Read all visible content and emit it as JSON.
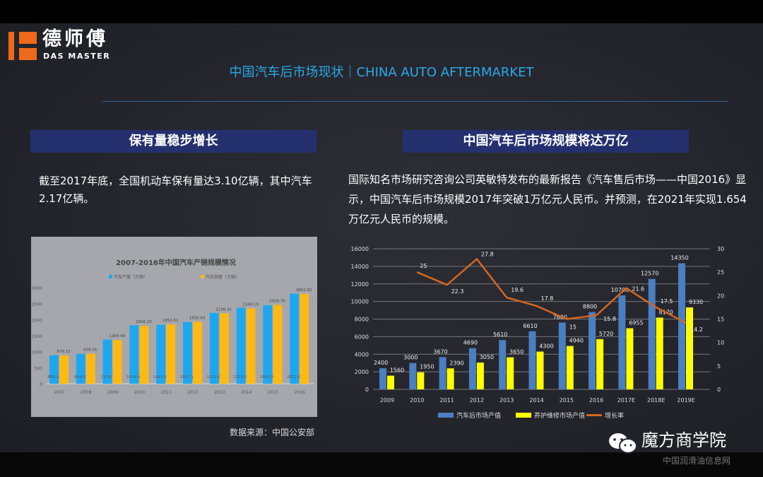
{
  "logo": {
    "cn": "德师傅",
    "en": "DAS MASTER"
  },
  "title": "中国汽车后市场现状｜CHINA AUTO AFTERMARKET",
  "left": {
    "heading": "保有量稳步增长",
    "text": "截至2017年底，全国机动车保有量达3.10亿辆，其中汽车2.17亿辆。",
    "source": "数据来源：中国公安部"
  },
  "right": {
    "heading": "中国汽车后市场规模将达万亿",
    "text": "国际知名市场研究咨询公司英敏特发布的最新报告《汽车售后市场——中国2016》显示，中国汽车后市场规模2017年突破1万亿元人民币。并预测，在2021年实现1.654万亿元人民币的规模。"
  },
  "watermark": {
    "name": "魔方商学院",
    "sub": "中国润滑油信息网"
  },
  "chart_data": [
    {
      "type": "bar",
      "title": "2007-2016年中国汽车产销规模情况",
      "categories": [
        "2007",
        "2008",
        "2009",
        "2010",
        "2011",
        "2012",
        "2013",
        "2014",
        "2015",
        "2016"
      ],
      "series": [
        {
          "name": "汽车产量（万辆）",
          "color": "#1ea7f0",
          "values": [
            888.24,
            934.51,
            1379.1,
            1826.47,
            1841.89,
            1927.18,
            2211.68,
            2372.29,
            2450.33,
            2811.88
          ]
        },
        {
          "name": "汽车销量（万辆）",
          "color": "#fdb913",
          "values": [
            879.15,
            938.05,
            1364.48,
            1806.19,
            1850.51,
            1930.64,
            2198.41,
            2349.19,
            2459.76,
            2802.82
          ]
        }
      ],
      "ylim": [
        0,
        3000
      ],
      "yticks": [
        0,
        500,
        1000,
        1500,
        2000,
        2500,
        3000
      ],
      "legend": "top"
    },
    {
      "type": "bar+line",
      "categories": [
        "2009",
        "2010",
        "2011",
        "2012",
        "2013",
        "2014",
        "2015",
        "2016",
        "2017E",
        "2018E",
        "2019E"
      ],
      "series": [
        {
          "name": "汽车后市场产值",
          "color": "#4a7fc1",
          "values": [
            2400,
            3000,
            3670,
            4690,
            5610,
            6610,
            7600,
            8800,
            10700,
            12570,
            14350
          ]
        },
        {
          "name": "养护维修市场产值",
          "color": "#ffff00",
          "values": [
            1560,
            1950,
            2390,
            3050,
            3650,
            4300,
            4940,
            5720,
            6955,
            8170,
            9330
          ]
        },
        {
          "name": "增长率",
          "color": "#d5661f",
          "axis": "right",
          "values": [
            null,
            25,
            22.3,
            27.8,
            19.6,
            17.8,
            15,
            15.8,
            21.6,
            17.5,
            14.2
          ]
        }
      ],
      "ylim": [
        0,
        16000
      ],
      "yticks": [
        0,
        2000,
        4000,
        6000,
        8000,
        10000,
        12000,
        14000,
        16000
      ],
      "y2lim": [
        0,
        30
      ],
      "y2ticks": [
        0,
        5,
        10,
        15,
        20,
        25,
        30
      ],
      "legend": "bottom",
      "grid": true
    }
  ]
}
